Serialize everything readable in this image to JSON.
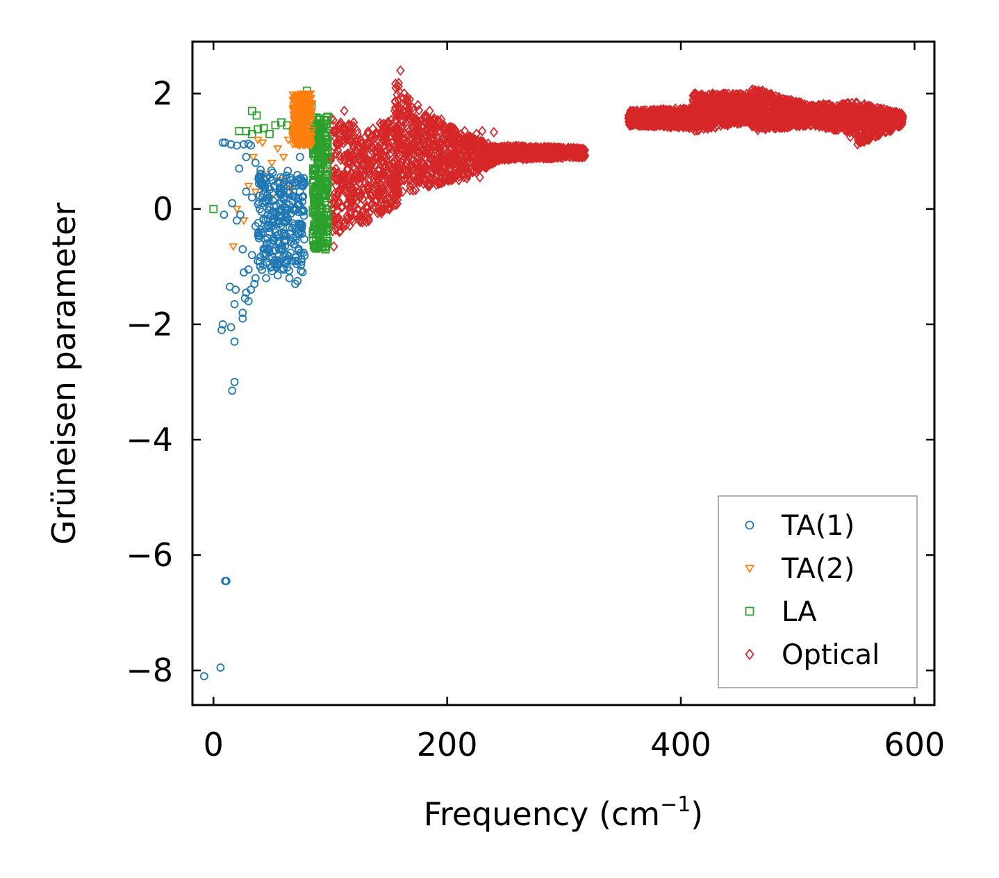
{
  "chart_data": {
    "type": "scatter",
    "xlabel": "Frequency (cm",
    "xlabel_sup": "−1",
    "xlabel_close": ")",
    "ylabel": "Grüneisen parameter",
    "xlim": [
      -18,
      617
    ],
    "ylim": [
      -8.6,
      2.9
    ],
    "xticks": [
      0,
      200,
      400,
      600
    ],
    "xtick_labels": [
      "0",
      "200",
      "400",
      "600"
    ],
    "yticks": [
      2,
      0,
      -2,
      -4,
      -6,
      -8
    ],
    "ytick_labels": [
      "2",
      "0",
      "−2",
      "−4",
      "−6",
      "−8"
    ],
    "legend_position": "lower-right",
    "series": [
      {
        "name": "TA(1)",
        "marker": "circle",
        "color": "#1f77b4",
        "points": [
          [
            -8,
            -8.1
          ],
          [
            6,
            -7.95
          ],
          [
            10,
            -6.45
          ],
          [
            11,
            -6.45
          ],
          [
            16,
            -3.15
          ],
          [
            18,
            -3.0
          ],
          [
            18,
            -2.3
          ],
          [
            8,
            -2.0
          ],
          [
            7,
            -2.1
          ],
          [
            15,
            -2.05
          ],
          [
            18,
            -1.65
          ],
          [
            25,
            -1.8
          ],
          [
            25,
            -1.9
          ],
          [
            27,
            -1.55
          ],
          [
            30,
            -1.6
          ],
          [
            14,
            -1.35
          ],
          [
            19,
            -1.4
          ],
          [
            28,
            -1.45
          ],
          [
            32,
            -1.4
          ],
          [
            35,
            -1.3
          ],
          [
            26,
            -1.1
          ],
          [
            30,
            -1.05
          ],
          [
            36,
            -1.2
          ],
          [
            40,
            -1.0
          ],
          [
            45,
            -1.2
          ],
          [
            25,
            -0.7
          ],
          [
            33,
            -0.8
          ],
          [
            38,
            -0.9
          ],
          [
            44,
            -0.7
          ],
          [
            50,
            -1.0
          ],
          [
            55,
            -1.15
          ],
          [
            60,
            -1.05
          ],
          [
            65,
            -1.2
          ],
          [
            70,
            -1.3
          ],
          [
            72,
            -1.25
          ],
          [
            9,
            -0.1
          ],
          [
            16,
            0.1
          ],
          [
            20,
            -0.2
          ],
          [
            23,
            -0.1
          ],
          [
            28,
            0.3
          ],
          [
            33,
            0.2
          ],
          [
            36,
            -0.3
          ],
          [
            42,
            0.1
          ],
          [
            48,
            -0.4
          ],
          [
            52,
            0.4
          ],
          [
            56,
            -0.6
          ],
          [
            60,
            0.2
          ],
          [
            63,
            -0.8
          ],
          [
            66,
            0.5
          ],
          [
            68,
            -0.5
          ],
          [
            70,
            0.0
          ],
          [
            72,
            -0.9
          ],
          [
            74,
            0.3
          ],
          [
            62,
            -0.2
          ],
          [
            58,
            -0.7
          ],
          [
            22,
            0.7
          ],
          [
            28,
            0.9
          ],
          [
            32,
            1.1
          ],
          [
            36,
            0.8
          ],
          [
            40,
            0.6
          ],
          [
            45,
            0.55
          ],
          [
            50,
            0.5
          ],
          [
            57,
            0.45
          ],
          [
            64,
            0.4
          ],
          [
            74,
            0.9
          ],
          [
            8,
            1.15
          ],
          [
            10,
            1.15
          ],
          [
            15,
            1.12
          ],
          [
            20,
            1.1
          ],
          [
            26,
            1.12
          ],
          [
            30,
            1.13
          ]
        ],
        "dense_region": {
          "x": [
            38,
            78
          ],
          "y": [
            -1.1,
            0.7
          ]
        }
      },
      {
        "name": "TA(2)",
        "marker": "triangle-down",
        "color": "#ff7f0e",
        "points": [
          [
            17,
            -0.65
          ],
          [
            26,
            -0.2
          ],
          [
            30,
            0.4
          ],
          [
            34,
            0.9
          ],
          [
            38,
            1.2
          ],
          [
            42,
            1.15
          ],
          [
            45,
            0.6
          ],
          [
            50,
            0.8
          ],
          [
            55,
            1.05
          ],
          [
            60,
            0.9
          ],
          [
            64,
            1.2
          ],
          [
            68,
            1.3
          ],
          [
            72,
            1.45
          ],
          [
            76,
            1.6
          ],
          [
            80,
            1.8
          ],
          [
            83,
            2.0
          ],
          [
            20,
            0.0
          ],
          [
            36,
            0.3
          ],
          [
            48,
            0.2
          ],
          [
            58,
            0.5
          ],
          [
            66,
            0.35
          ]
        ],
        "dense_region": {
          "x": [
            68,
            84
          ],
          "y": [
            1.1,
            2.0
          ]
        }
      },
      {
        "name": "LA",
        "marker": "square",
        "color": "#2ca02c",
        "points": [
          [
            0,
            0.0
          ],
          [
            33,
            1.7
          ],
          [
            37,
            1.62
          ],
          [
            22,
            1.35
          ],
          [
            28,
            1.35
          ],
          [
            33,
            1.3
          ],
          [
            38,
            1.38
          ],
          [
            43,
            1.4
          ],
          [
            48,
            1.3
          ],
          [
            53,
            1.45
          ],
          [
            58,
            1.5
          ],
          [
            63,
            1.45
          ],
          [
            68,
            1.35
          ],
          [
            72,
            1.25
          ],
          [
            76,
            1.35
          ],
          [
            80,
            2.05
          ],
          [
            84,
            1.8
          ],
          [
            88,
            1.2
          ],
          [
            90,
            0.6
          ],
          [
            92,
            0.0
          ],
          [
            94,
            -0.5
          ],
          [
            96,
            1.0
          ],
          [
            86,
            -0.3
          ],
          [
            88,
            0.3
          ],
          [
            97,
            -0.6
          ]
        ],
        "dense_region": {
          "x": [
            85,
            98
          ],
          "y": [
            -0.7,
            1.6
          ]
        }
      },
      {
        "name": "Optical",
        "marker": "diamond",
        "color": "#d62728",
        "points": [
          [
            103,
            -0.65
          ],
          [
            112,
            1.7
          ],
          [
            120,
            1.5
          ],
          [
            130,
            1.25
          ],
          [
            140,
            1.0
          ],
          [
            155,
            1.7
          ],
          [
            160,
            2.4
          ],
          [
            168,
            1.9
          ],
          [
            175,
            1.8
          ],
          [
            185,
            1.7
          ],
          [
            195,
            1.55
          ],
          [
            205,
            1.4
          ],
          [
            215,
            1.35
          ],
          [
            225,
            1.3
          ],
          [
            230,
            1.35
          ],
          [
            240,
            1.33
          ],
          [
            232,
            1.1
          ],
          [
            162,
            0.3
          ],
          [
            185,
            0.4
          ],
          [
            210,
            0.5
          ],
          [
            228,
            0.55
          ],
          [
            245,
            1.0
          ],
          [
            260,
            1.0
          ],
          [
            275,
            1.05
          ],
          [
            290,
            0.98
          ],
          [
            305,
            0.95
          ],
          [
            315,
            0.97
          ],
          [
            360,
            1.6
          ],
          [
            380,
            1.55
          ],
          [
            400,
            1.5
          ],
          [
            412,
            2.0
          ],
          [
            425,
            1.8
          ],
          [
            440,
            1.6
          ],
          [
            455,
            1.95
          ],
          [
            470,
            2.05
          ],
          [
            485,
            1.8
          ],
          [
            500,
            1.6
          ],
          [
            515,
            1.7
          ],
          [
            530,
            1.6
          ],
          [
            545,
            1.75
          ],
          [
            560,
            1.2
          ],
          [
            570,
            1.35
          ],
          [
            580,
            1.45
          ],
          [
            587,
            1.55
          ],
          [
            440,
            1.45
          ],
          [
            470,
            1.45
          ],
          [
            505,
            1.45
          ],
          [
            545,
            1.25
          ]
        ],
        "bands": [
          {
            "x": [
              100,
              125
            ],
            "ylo": [
              -0.5,
              -0.2
            ],
            "yhi": [
              1.6,
              1.4
            ]
          },
          {
            "x": [
              125,
              160
            ],
            "ylo": [
              -0.3,
              0.1
            ],
            "yhi": [
              1.3,
              1.7
            ]
          },
          {
            "x": [
              155,
              168
            ],
            "ylo": [
              0.3,
              0.6
            ],
            "yhi": [
              2.3,
              1.9
            ]
          },
          {
            "x": [
              168,
              215
            ],
            "ylo": [
              0.3,
              0.55
            ],
            "yhi": [
              1.8,
              1.3
            ]
          },
          {
            "x": [
              215,
              245
            ],
            "ylo": [
              0.5,
              0.85
            ],
            "yhi": [
              1.3,
              1.05
            ]
          },
          {
            "x": [
              245,
              318
            ],
            "ylo": [
              0.85,
              0.9
            ],
            "yhi": [
              1.1,
              1.05
            ]
          },
          {
            "x": [
              355,
              410
            ],
            "ylo": [
              1.45,
              1.4
            ],
            "yhi": [
              1.7,
              1.75
            ]
          },
          {
            "x": [
              410,
              460
            ],
            "ylo": [
              1.35,
              1.5
            ],
            "yhi": [
              2.0,
              2.0
            ]
          },
          {
            "x": [
              460,
              510
            ],
            "ylo": [
              1.35,
              1.45
            ],
            "yhi": [
              2.1,
              1.8
            ]
          },
          {
            "x": [
              510,
              550
            ],
            "ylo": [
              1.45,
              1.3
            ],
            "yhi": [
              1.8,
              1.85
            ]
          },
          {
            "x": [
              550,
              590
            ],
            "ylo": [
              1.1,
              1.45
            ],
            "yhi": [
              1.85,
              1.65
            ]
          }
        ]
      }
    ]
  }
}
